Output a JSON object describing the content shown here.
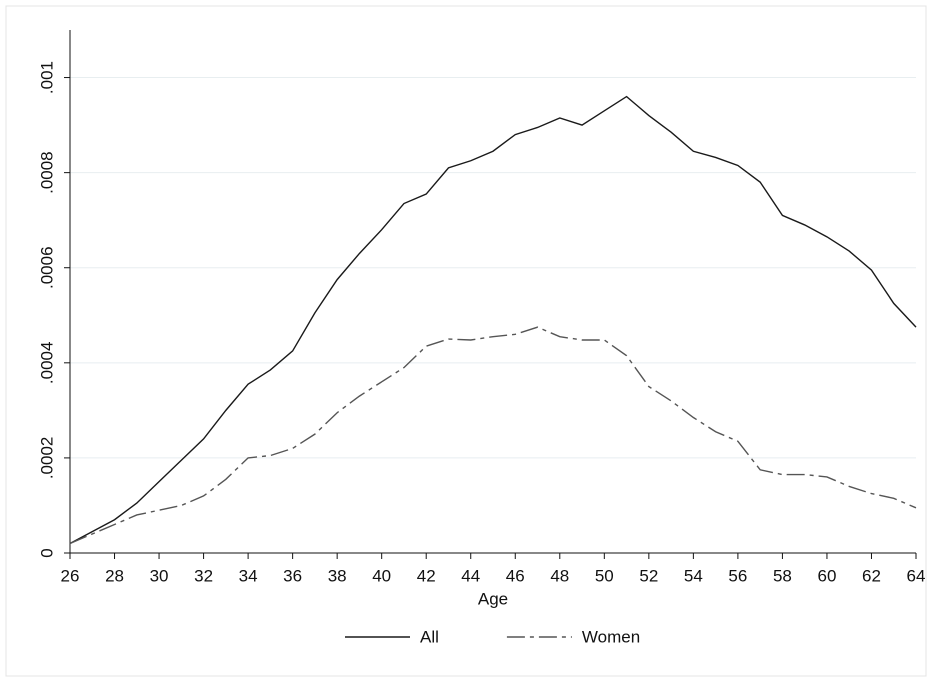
{
  "chart_data": {
    "type": "line",
    "x_label": "Age",
    "x": [
      26,
      27,
      28,
      29,
      30,
      31,
      32,
      33,
      34,
      35,
      36,
      37,
      38,
      39,
      40,
      41,
      42,
      43,
      44,
      45,
      46,
      47,
      48,
      49,
      50,
      51,
      52,
      53,
      54,
      55,
      56,
      57,
      58,
      59,
      60,
      61,
      62,
      63,
      64
    ],
    "series": [
      {
        "name": "All",
        "color": "#1a1a1a",
        "style": "solid",
        "values": [
          2e-05,
          4.5e-05,
          7e-05,
          0.000105,
          0.00015,
          0.000195,
          0.00024,
          0.0003,
          0.000355,
          0.000385,
          0.000425,
          0.000505,
          0.000575,
          0.00063,
          0.00068,
          0.000735,
          0.000755,
          0.00081,
          0.000825,
          0.000845,
          0.00088,
          0.000895,
          0.000915,
          0.0009,
          0.00093,
          0.00096,
          0.00092,
          0.000885,
          0.000845,
          0.000832,
          0.000815,
          0.00078,
          0.00071,
          0.00069,
          0.000665,
          0.000635,
          0.000595,
          0.000525,
          0.000475
        ]
      },
      {
        "name": "Women",
        "color": "#555555",
        "style": "dashed",
        "values": [
          2e-05,
          4e-05,
          6e-05,
          8e-05,
          9e-05,
          0.0001,
          0.00012,
          0.000155,
          0.0002,
          0.000205,
          0.00022,
          0.00025,
          0.000295,
          0.00033,
          0.00036,
          0.00039,
          0.000435,
          0.00045,
          0.000448,
          0.000455,
          0.00046,
          0.000475,
          0.000455,
          0.000448,
          0.000448,
          0.000415,
          0.00035,
          0.00032,
          0.000285,
          0.000255,
          0.000235,
          0.000175,
          0.000165,
          0.000165,
          0.00016,
          0.00014,
          0.000125,
          0.000115,
          9.5e-05
        ]
      }
    ],
    "xlim": [
      26,
      64
    ],
    "xticks": [
      26,
      28,
      30,
      32,
      34,
      36,
      38,
      40,
      42,
      44,
      46,
      48,
      50,
      52,
      54,
      56,
      58,
      60,
      62,
      64
    ],
    "ylim": [
      0,
      0.0011
    ],
    "yticks": [
      0,
      {
        "value": 0.0002,
        "label": ".0002"
      },
      {
        "value": 0.0004,
        "label": ".0004"
      },
      {
        "value": 0.0006,
        "label": ".0006"
      },
      {
        "value": 0.0008,
        "label": ".0008"
      },
      {
        "value": 0.001,
        "label": ".001"
      }
    ],
    "grid": true,
    "legend": "bottom"
  }
}
